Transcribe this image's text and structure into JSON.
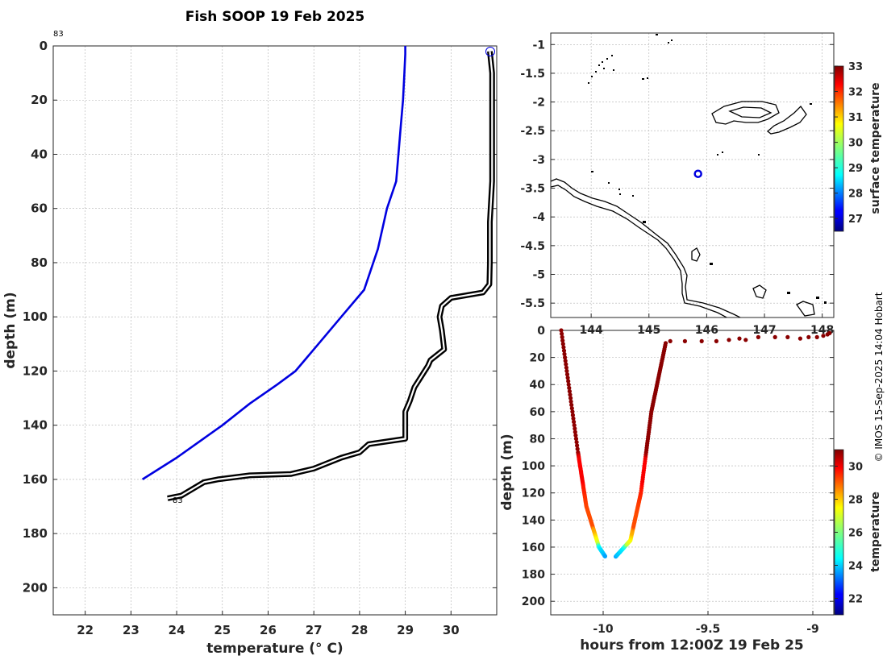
{
  "figure": {
    "title": "Fish SOOP 19 Feb 2025",
    "credit": "© IMOS 15-Sep-2025 14:04 Hobart"
  },
  "chart_data": [
    {
      "type": "line",
      "name": "profile",
      "xlabel": "temperature (° C)",
      "ylabel": "depth (m)",
      "xlim": [
        21.3,
        31
      ],
      "ylim": [
        210,
        0
      ],
      "xticks": [
        22,
        23,
        24,
        25,
        26,
        27,
        28,
        29,
        30
      ],
      "yticks": [
        0,
        20,
        40,
        60,
        80,
        100,
        120,
        140,
        160,
        180,
        200
      ],
      "grid": true,
      "annotations": [
        "83",
        "83"
      ],
      "series": [
        {
          "color": "#0000e0",
          "points": [
            [
              29.0,
              0
            ],
            [
              29.0,
              3
            ],
            [
              28.98,
              10
            ],
            [
              28.95,
              20
            ],
            [
              28.9,
              30
            ],
            [
              28.85,
              40
            ],
            [
              28.8,
              50
            ],
            [
              28.6,
              60
            ],
            [
              28.4,
              75
            ],
            [
              28.1,
              90
            ],
            [
              27.6,
              100
            ],
            [
              27.1,
              110
            ],
            [
              26.6,
              120
            ],
            [
              26.2,
              125
            ],
            [
              25.6,
              132
            ],
            [
              25.0,
              140
            ],
            [
              24.0,
              152
            ],
            [
              23.25,
              160
            ]
          ]
        },
        {
          "color": "#000000",
          "points": [
            [
              30.85,
              2
            ],
            [
              30.9,
              10
            ],
            [
              30.9,
              30
            ],
            [
              30.9,
              50
            ],
            [
              30.85,
              65
            ],
            [
              30.85,
              80
            ],
            [
              30.84,
              88
            ],
            [
              30.7,
              91
            ],
            [
              30.0,
              93
            ],
            [
              29.8,
              96
            ],
            [
              29.75,
              100
            ],
            [
              29.8,
              105
            ],
            [
              29.85,
              112
            ],
            [
              29.55,
              116
            ],
            [
              29.5,
              118
            ],
            [
              29.35,
              122
            ],
            [
              29.2,
              126
            ],
            [
              29.1,
              131
            ],
            [
              29.0,
              135
            ],
            [
              29.0,
              140
            ],
            [
              29.0,
              145
            ],
            [
              28.2,
              147
            ],
            [
              28.0,
              150
            ],
            [
              27.6,
              152
            ],
            [
              27.3,
              154
            ],
            [
              27.0,
              156
            ],
            [
              26.5,
              158
            ],
            [
              25.6,
              158.5
            ],
            [
              24.9,
              160
            ],
            [
              24.6,
              161
            ],
            [
              24.3,
              164
            ],
            [
              24.1,
              166
            ],
            [
              23.8,
              167
            ]
          ]
        }
      ]
    },
    {
      "type": "scatter",
      "name": "map",
      "xlim": [
        143.3,
        148.2
      ],
      "ylim": [
        -5.75,
        -0.8
      ],
      "xticks": [
        144,
        145,
        146,
        147,
        148
      ],
      "yticks": [
        -1,
        -1.5,
        -2,
        -2.5,
        -3,
        -3.5,
        -4,
        -4.5,
        -5,
        -5.5
      ],
      "grid": true,
      "points": [
        {
          "lon": 145.85,
          "lat": -3.25,
          "color": "#0000e0"
        }
      ],
      "colorbar": {
        "label": "surface temperature",
        "range": [
          26.5,
          33
        ],
        "ticks": [
          27,
          28,
          29,
          30,
          31,
          32,
          33
        ]
      }
    },
    {
      "type": "scatter",
      "name": "time-depth",
      "xlabel": "hours from 12:00Z 19 Feb 25",
      "ylabel": "depth (m)",
      "xlim": [
        -10.25,
        -8.9
      ],
      "ylim": [
        210,
        0
      ],
      "xticks": [
        -10,
        -9.5,
        -9
      ],
      "yticks": [
        0,
        20,
        40,
        60,
        80,
        100,
        120,
        140,
        160,
        180,
        200
      ],
      "grid": true,
      "colorbar": {
        "label": "temperature",
        "range": [
          21,
          31
        ],
        "ticks": [
          22,
          24,
          26,
          28,
          30
        ]
      }
    }
  ]
}
